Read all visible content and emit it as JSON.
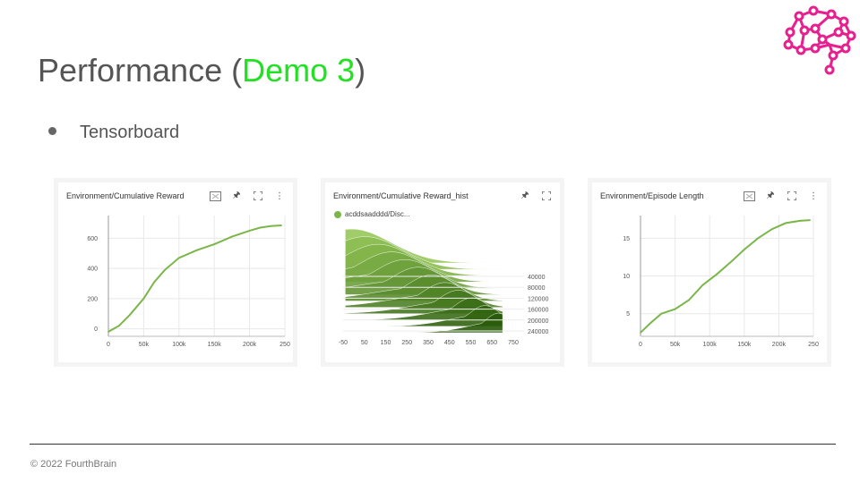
{
  "title": {
    "main": "Performance (",
    "accent": "Demo 3",
    "close": ")"
  },
  "bullet": {
    "text": "Tensorboard"
  },
  "colors": {
    "accent": "#22e022",
    "logo": "#e6218f",
    "line": "#7ab648"
  },
  "cards": [
    {
      "title": "Environment/Cumulative Reward",
      "chart_data": {
        "type": "line",
        "title": "Environment/Cumulative Reward",
        "x_ticks": [
          "0",
          "50k",
          "100k",
          "150k",
          "200k",
          "250"
        ],
        "y_ticks": [
          "0",
          "200",
          "400",
          "600"
        ],
        "xlim": [
          0,
          250000
        ],
        "ylim": [
          -50,
          750
        ],
        "x": [
          0,
          15000,
          30000,
          50000,
          65000,
          80000,
          100000,
          125000,
          150000,
          175000,
          200000,
          215000,
          230000,
          245000
        ],
        "values": [
          -20,
          20,
          90,
          200,
          310,
          390,
          470,
          520,
          560,
          610,
          650,
          670,
          680,
          685
        ]
      }
    },
    {
      "title": "Environment/Cumulative Reward_hist",
      "legend": "acddsaadddd/Disc...",
      "chart_data": {
        "type": "area",
        "title": "Environment/Cumulative Reward_hist",
        "x_ticks": [
          "-50",
          "50",
          "150",
          "250",
          "350",
          "450",
          "550",
          "650",
          "750"
        ],
        "step_ticks": [
          "40000",
          "80000",
          "120000",
          "160000",
          "200000",
          "240000"
        ],
        "xlim": [
          -50,
          750
        ]
      }
    },
    {
      "title": "Environment/Episode Length",
      "chart_data": {
        "type": "line",
        "title": "Environment/Episode Length",
        "x_ticks": [
          "0",
          "50k",
          "100k",
          "150k",
          "200k",
          "250"
        ],
        "y_ticks": [
          "5",
          "10",
          "15"
        ],
        "xlim": [
          0,
          250000
        ],
        "ylim": [
          2,
          18
        ],
        "x": [
          0,
          15000,
          30000,
          50000,
          70000,
          90000,
          110000,
          130000,
          150000,
          170000,
          190000,
          210000,
          230000,
          245000
        ],
        "values": [
          2.5,
          3.8,
          5.0,
          5.6,
          6.8,
          8.8,
          10.2,
          11.8,
          13.5,
          15.0,
          16.2,
          17.0,
          17.3,
          17.4
        ]
      }
    }
  ],
  "tools": {
    "fit": "fit-icon",
    "pin": "pin-icon",
    "expand": "expand-icon",
    "more": "more-icon"
  },
  "footer": {
    "text": "© 2022 FourthBrain"
  }
}
